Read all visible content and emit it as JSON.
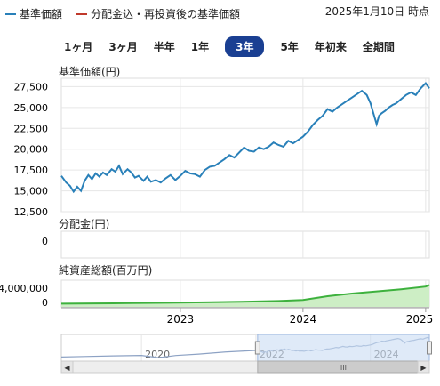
{
  "legend": {
    "series1": {
      "label": "基準価額",
      "color": "#2980b9"
    },
    "series2": {
      "label": "分配金込・再投資後の基準価額",
      "color": "#c0392b"
    }
  },
  "as_of": "2025年1月10日 時点",
  "periods": [
    {
      "label": "1ヶ月",
      "active": false
    },
    {
      "label": "3ヶ月",
      "active": false
    },
    {
      "label": "半年",
      "active": false
    },
    {
      "label": "1年",
      "active": false
    },
    {
      "label": "3年",
      "active": true
    },
    {
      "label": "5年",
      "active": false
    },
    {
      "label": "年初来",
      "active": false
    },
    {
      "label": "全期間",
      "active": false
    }
  ],
  "panels": {
    "price_title": "基準価額(円)",
    "dist_title": "分配金(円)",
    "assets_title": "純資産総額(百万円)"
  },
  "chart_data": [
    {
      "type": "line",
      "title": "基準価額(円)",
      "yticks": [
        "27,500",
        "25,000",
        "22,500",
        "20,000",
        "17,500",
        "15,000",
        "12,500"
      ],
      "ylim": [
        12500,
        28500
      ],
      "xlim": [
        2022.03,
        2025.03
      ],
      "xticks": [
        "2023",
        "2024",
        "2025"
      ],
      "series": [
        {
          "color": "#2980b9",
          "x": [
            2022.03,
            2022.07,
            2022.1,
            2022.13,
            2022.16,
            2022.19,
            2022.22,
            2022.25,
            2022.28,
            2022.31,
            2022.34,
            2022.37,
            2022.4,
            2022.44,
            2022.47,
            2022.5,
            2022.53,
            2022.57,
            2022.6,
            2022.63,
            2022.66,
            2022.7,
            2022.73,
            2022.76,
            2022.8,
            2022.84,
            2022.88,
            2022.92,
            2022.96,
            2023.0,
            2023.04,
            2023.08,
            2023.12,
            2023.16,
            2023.2,
            2023.24,
            2023.28,
            2023.32,
            2023.36,
            2023.4,
            2023.44,
            2023.48,
            2023.52,
            2023.56,
            2023.6,
            2023.64,
            2023.68,
            2023.72,
            2023.76,
            2023.8,
            2023.84,
            2023.88,
            2023.92,
            2023.96,
            2024.0,
            2024.04,
            2024.08,
            2024.12,
            2024.16,
            2024.2,
            2024.24,
            2024.28,
            2024.32,
            2024.36,
            2024.4,
            2024.44,
            2024.48,
            2024.52,
            2024.55,
            2024.58,
            2024.6,
            2024.62,
            2024.64,
            2024.67,
            2024.7,
            2024.73,
            2024.76,
            2024.8,
            2024.84,
            2024.88,
            2024.92,
            2024.96,
            2025.0,
            2025.03
          ],
          "values": [
            16800,
            16000,
            15600,
            14900,
            15500,
            15000,
            16200,
            16900,
            16400,
            17100,
            16700,
            17200,
            16900,
            17600,
            17300,
            18000,
            17000,
            17600,
            17200,
            16600,
            16800,
            16200,
            16700,
            16100,
            16300,
            16000,
            16500,
            16900,
            16300,
            16800,
            17400,
            17100,
            17000,
            16700,
            17500,
            17900,
            18000,
            18400,
            18800,
            19300,
            19000,
            19600,
            20200,
            19800,
            19700,
            20200,
            20000,
            20300,
            20800,
            20500,
            20300,
            21000,
            20700,
            21100,
            21500,
            22100,
            22900,
            23500,
            24000,
            24800,
            24500,
            25000,
            25400,
            25800,
            26200,
            26600,
            27000,
            26500,
            25500,
            24000,
            23000,
            24000,
            24300,
            24600,
            25000,
            25300,
            25500,
            26000,
            26500,
            26800,
            26500,
            27300,
            27900,
            27300
          ]
        }
      ]
    },
    {
      "type": "bar",
      "title": "分配金(円)",
      "yticks": [
        "0"
      ],
      "values": []
    },
    {
      "type": "area",
      "title": "純資産総額(百万円)",
      "yticks": [
        "4,000,000",
        "0"
      ],
      "ylim": [
        0,
        5000000
      ],
      "xlim": [
        2022.03,
        2025.03
      ],
      "series": [
        {
          "color": "#3db13d",
          "x": [
            2022.03,
            2022.3,
            2022.6,
            2022.9,
            2023.2,
            2023.5,
            2023.8,
            2024.0,
            2024.2,
            2024.4,
            2024.6,
            2024.8,
            2025.0,
            2025.03
          ],
          "values": [
            600000,
            650000,
            700000,
            760000,
            850000,
            950000,
            1100000,
            1300000,
            2000000,
            2500000,
            2900000,
            3300000,
            3800000,
            4100000
          ]
        }
      ]
    }
  ],
  "navigator": {
    "labels": [
      "2020",
      "2022",
      "2024"
    ],
    "range": [
      2022.03,
      2025.03
    ],
    "xlim": [
      2018.6,
      2025.03
    ],
    "scroll_left": "◀",
    "scroll_right": "▶",
    "grip": "III"
  }
}
